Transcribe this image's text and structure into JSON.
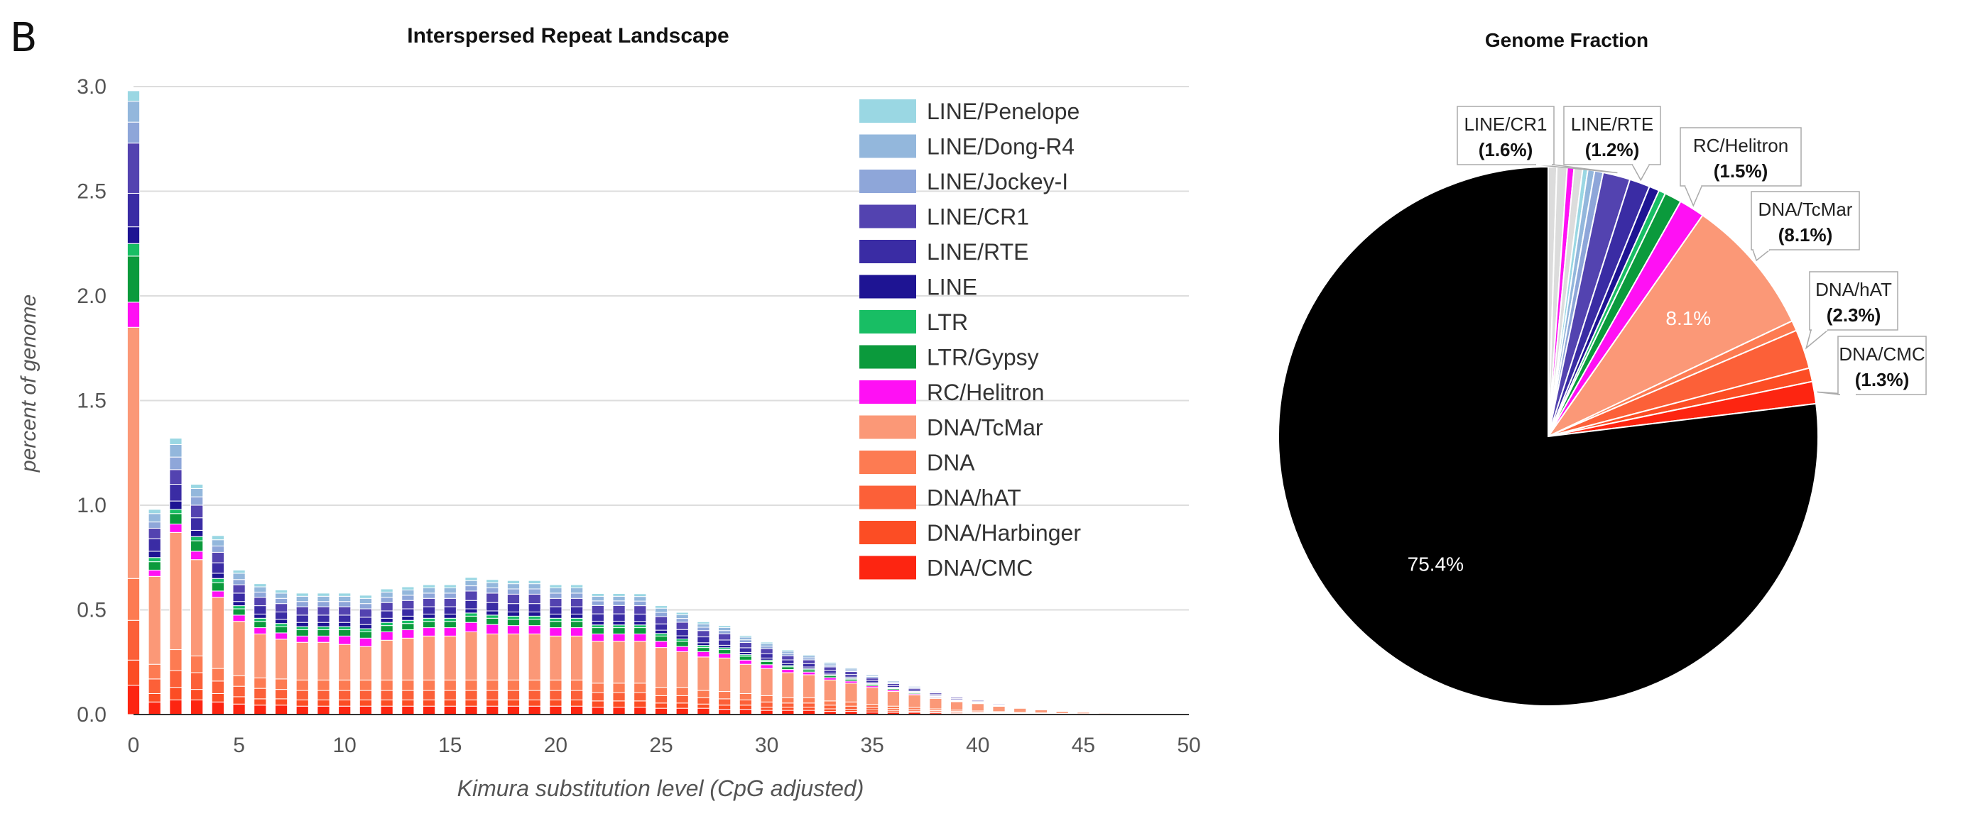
{
  "panel_label": "B",
  "colors": {
    "LINE/Penelope": "#9ad7e3",
    "LINE/Dong-R4": "#93b7dc",
    "LINE/Jockey-I": "#8ea6d9",
    "LINE/CR1": "#5343b0",
    "LINE/RTE": "#3a2ca4",
    "LINE": "#1e1493",
    "LTR": "#18be64",
    "LTR/Gypsy": "#0b9a3c",
    "RC/Helitron": "#ff10f4",
    "DNA/TcMar": "#fb9877",
    "DNA": "#fd7b52",
    "DNA/hAT": "#fc6038",
    "DNA/Harbinger": "#fc4d24",
    "DNA/CMC": "#fd2511",
    "Unmasked": "#000000",
    "Other": "#dcdcdc",
    "Grid": "#dddddd",
    "Axis text": "#555555"
  },
  "chart_data": [
    {
      "type": "bar",
      "stacked": true,
      "title": "Interspersed Repeat Landscape",
      "xlabel": "Kimura substitution level (CpG adjusted)",
      "ylabel": "percent of genome",
      "xlim": [
        0,
        50
      ],
      "ylim": [
        0,
        3.0
      ],
      "x_ticks": [
        "0",
        "5",
        "10",
        "15",
        "20",
        "25",
        "30",
        "35",
        "40",
        "45",
        "50"
      ],
      "y_ticks": [
        "3.0",
        "2.5",
        "2.0",
        "1.5",
        "1.0",
        "0.5",
        "0.0"
      ],
      "grid": true,
      "legend_position": "top-right",
      "categories": [
        0,
        1,
        2,
        3,
        4,
        5,
        6,
        7,
        8,
        9,
        10,
        11,
        12,
        13,
        14,
        15,
        16,
        17,
        18,
        19,
        20,
        21,
        22,
        23,
        24,
        25,
        26,
        27,
        28,
        29,
        30,
        31,
        32,
        33,
        34,
        35,
        36,
        37,
        38,
        39,
        40,
        41,
        42,
        43,
        44,
        45,
        46,
        47,
        48,
        49
      ],
      "series": [
        {
          "name": "DNA/CMC",
          "values": [
            0.14,
            0.06,
            0.07,
            0.07,
            0.06,
            0.05,
            0.045,
            0.045,
            0.04,
            0.04,
            0.04,
            0.04,
            0.04,
            0.04,
            0.04,
            0.04,
            0.04,
            0.04,
            0.04,
            0.04,
            0.04,
            0.04,
            0.035,
            0.035,
            0.035,
            0.03,
            0.03,
            0.03,
            0.025,
            0.025,
            0.02,
            0.02,
            0.02,
            0.015,
            0.015,
            0.012,
            0.01,
            0.01,
            0.008,
            0.006,
            0.005,
            0.004,
            0.003,
            0.002,
            0.002,
            0.001,
            0.001,
            0.0005,
            0.0005,
            0.0002
          ]
        },
        {
          "name": "DNA/Harbinger",
          "values": [
            0.12,
            0.04,
            0.06,
            0.05,
            0.04,
            0.035,
            0.03,
            0.03,
            0.03,
            0.03,
            0.03,
            0.03,
            0.03,
            0.03,
            0.03,
            0.03,
            0.03,
            0.03,
            0.03,
            0.03,
            0.03,
            0.03,
            0.03,
            0.03,
            0.03,
            0.025,
            0.025,
            0.02,
            0.02,
            0.02,
            0.015,
            0.015,
            0.015,
            0.012,
            0.01,
            0.01,
            0.008,
            0.006,
            0.005,
            0.004,
            0.003,
            0.003,
            0.002,
            0.002,
            0.001,
            0.001,
            0.0005,
            0.0005,
            0.0003,
            0.0002
          ]
        },
        {
          "name": "DNA/hAT",
          "values": [
            0.19,
            0.07,
            0.08,
            0.08,
            0.06,
            0.05,
            0.05,
            0.045,
            0.045,
            0.045,
            0.045,
            0.045,
            0.045,
            0.045,
            0.045,
            0.045,
            0.045,
            0.045,
            0.045,
            0.045,
            0.045,
            0.045,
            0.04,
            0.04,
            0.04,
            0.035,
            0.035,
            0.03,
            0.03,
            0.025,
            0.025,
            0.02,
            0.02,
            0.018,
            0.015,
            0.012,
            0.01,
            0.008,
            0.006,
            0.005,
            0.004,
            0.003,
            0.002,
            0.002,
            0.001,
            0.001,
            0.0005,
            0.0005,
            0.0003,
            0.0002
          ]
        },
        {
          "name": "DNA",
          "values": [
            0.2,
            0.07,
            0.1,
            0.08,
            0.06,
            0.05,
            0.05,
            0.05,
            0.05,
            0.05,
            0.05,
            0.05,
            0.05,
            0.05,
            0.05,
            0.05,
            0.05,
            0.05,
            0.05,
            0.05,
            0.05,
            0.05,
            0.045,
            0.045,
            0.045,
            0.04,
            0.04,
            0.035,
            0.035,
            0.03,
            0.03,
            0.025,
            0.025,
            0.02,
            0.02,
            0.015,
            0.012,
            0.01,
            0.008,
            0.006,
            0.005,
            0.004,
            0.003,
            0.002,
            0.001,
            0.001,
            0.0005,
            0.0005,
            0.0003,
            0.0002
          ]
        },
        {
          "name": "DNA/TcMar",
          "values": [
            1.2,
            0.42,
            0.56,
            0.46,
            0.34,
            0.26,
            0.21,
            0.19,
            0.18,
            0.18,
            0.17,
            0.16,
            0.19,
            0.2,
            0.21,
            0.21,
            0.23,
            0.22,
            0.22,
            0.22,
            0.21,
            0.21,
            0.2,
            0.2,
            0.2,
            0.19,
            0.17,
            0.16,
            0.16,
            0.14,
            0.13,
            0.12,
            0.11,
            0.1,
            0.09,
            0.08,
            0.07,
            0.06,
            0.05,
            0.04,
            0.035,
            0.025,
            0.02,
            0.015,
            0.01,
            0.008,
            0.005,
            0.003,
            0.002,
            0.001
          ]
        },
        {
          "name": "RC/Helitron",
          "values": [
            0.12,
            0.03,
            0.04,
            0.04,
            0.03,
            0.03,
            0.03,
            0.03,
            0.03,
            0.03,
            0.04,
            0.04,
            0.04,
            0.04,
            0.04,
            0.04,
            0.045,
            0.045,
            0.04,
            0.04,
            0.04,
            0.04,
            0.035,
            0.035,
            0.035,
            0.03,
            0.025,
            0.025,
            0.02,
            0.02,
            0.018,
            0.015,
            0.013,
            0.011,
            0.01,
            0.008,
            0.007,
            0.005,
            0.004,
            0.003,
            0.003,
            0.002,
            0.0015,
            0.001,
            0.0008,
            0.0005,
            0.0004,
            0.0003,
            0.0002,
            0.0001
          ]
        },
        {
          "name": "LTR/Gypsy",
          "values": [
            0.22,
            0.04,
            0.05,
            0.05,
            0.04,
            0.03,
            0.03,
            0.03,
            0.03,
            0.03,
            0.03,
            0.03,
            0.03,
            0.03,
            0.03,
            0.03,
            0.03,
            0.03,
            0.03,
            0.03,
            0.03,
            0.03,
            0.03,
            0.03,
            0.03,
            0.025,
            0.025,
            0.02,
            0.02,
            0.018,
            0.015,
            0.013,
            0.011,
            0.01,
            0.009,
            0.007,
            0.006,
            0.005,
            0.004,
            0.003,
            0.002,
            0.002,
            0.0015,
            0.001,
            0.0008,
            0.0005,
            0.0004,
            0.0003,
            0.0002,
            0.0001
          ]
        },
        {
          "name": "LTR",
          "values": [
            0.06,
            0.02,
            0.02,
            0.02,
            0.02,
            0.015,
            0.015,
            0.015,
            0.015,
            0.015,
            0.015,
            0.015,
            0.015,
            0.015,
            0.015,
            0.015,
            0.015,
            0.015,
            0.015,
            0.015,
            0.015,
            0.015,
            0.013,
            0.013,
            0.013,
            0.012,
            0.011,
            0.01,
            0.009,
            0.008,
            0.007,
            0.006,
            0.005,
            0.0045,
            0.004,
            0.0035,
            0.003,
            0.0025,
            0.002,
            0.0015,
            0.001,
            0.001,
            0.0008,
            0.0005,
            0.0004,
            0.0003,
            0.0002,
            0.0001,
            0.0001,
            0.0001
          ]
        },
        {
          "name": "LINE",
          "values": [
            0.08,
            0.03,
            0.04,
            0.03,
            0.025,
            0.02,
            0.02,
            0.02,
            0.02,
            0.02,
            0.02,
            0.02,
            0.02,
            0.02,
            0.02,
            0.02,
            0.02,
            0.02,
            0.02,
            0.02,
            0.02,
            0.02,
            0.018,
            0.018,
            0.017,
            0.016,
            0.015,
            0.013,
            0.012,
            0.011,
            0.01,
            0.009,
            0.008,
            0.007,
            0.006,
            0.005,
            0.004,
            0.0035,
            0.003,
            0.0025,
            0.002,
            0.0015,
            0.001,
            0.0008,
            0.0005,
            0.0004,
            0.0003,
            0.0002,
            0.0001,
            0.0001
          ]
        },
        {
          "name": "LINE/RTE",
          "values": [
            0.16,
            0.06,
            0.08,
            0.06,
            0.05,
            0.04,
            0.04,
            0.035,
            0.035,
            0.035,
            0.035,
            0.035,
            0.035,
            0.035,
            0.035,
            0.035,
            0.04,
            0.04,
            0.04,
            0.04,
            0.035,
            0.035,
            0.035,
            0.035,
            0.035,
            0.03,
            0.03,
            0.028,
            0.025,
            0.022,
            0.02,
            0.018,
            0.016,
            0.014,
            0.012,
            0.01,
            0.008,
            0.007,
            0.006,
            0.005,
            0.004,
            0.003,
            0.002,
            0.0015,
            0.001,
            0.0008,
            0.0005,
            0.0004,
            0.0002,
            0.0001
          ]
        },
        {
          "name": "LINE/CR1",
          "values": [
            0.24,
            0.05,
            0.07,
            0.06,
            0.05,
            0.04,
            0.04,
            0.04,
            0.04,
            0.04,
            0.04,
            0.04,
            0.04,
            0.04,
            0.04,
            0.04,
            0.045,
            0.045,
            0.045,
            0.045,
            0.04,
            0.04,
            0.04,
            0.04,
            0.04,
            0.035,
            0.035,
            0.03,
            0.03,
            0.025,
            0.025,
            0.02,
            0.018,
            0.016,
            0.014,
            0.012,
            0.01,
            0.008,
            0.007,
            0.006,
            0.005,
            0.004,
            0.003,
            0.002,
            0.0015,
            0.001,
            0.0008,
            0.0005,
            0.0003,
            0.0002
          ]
        },
        {
          "name": "LINE/Jockey-I",
          "values": [
            0.1,
            0.03,
            0.06,
            0.04,
            0.03,
            0.025,
            0.025,
            0.025,
            0.025,
            0.025,
            0.025,
            0.025,
            0.025,
            0.025,
            0.025,
            0.025,
            0.025,
            0.025,
            0.025,
            0.025,
            0.025,
            0.025,
            0.022,
            0.022,
            0.022,
            0.02,
            0.018,
            0.016,
            0.015,
            0.013,
            0.012,
            0.011,
            0.01,
            0.009,
            0.008,
            0.007,
            0.006,
            0.005,
            0.004,
            0.003,
            0.0025,
            0.002,
            0.0015,
            0.001,
            0.0008,
            0.0005,
            0.0004,
            0.0003,
            0.0002,
            0.0001
          ]
        },
        {
          "name": "LINE/Dong-R4",
          "values": [
            0.1,
            0.04,
            0.06,
            0.04,
            0.03,
            0.03,
            0.025,
            0.025,
            0.025,
            0.025,
            0.025,
            0.025,
            0.025,
            0.025,
            0.025,
            0.025,
            0.025,
            0.025,
            0.025,
            0.025,
            0.025,
            0.025,
            0.022,
            0.022,
            0.022,
            0.02,
            0.018,
            0.016,
            0.015,
            0.013,
            0.012,
            0.011,
            0.01,
            0.009,
            0.008,
            0.007,
            0.006,
            0.005,
            0.004,
            0.003,
            0.0025,
            0.002,
            0.0015,
            0.001,
            0.0008,
            0.0005,
            0.0004,
            0.0003,
            0.0002,
            0.0001
          ]
        },
        {
          "name": "LINE/Penelope",
          "values": [
            0.05,
            0.02,
            0.03,
            0.02,
            0.02,
            0.015,
            0.015,
            0.015,
            0.015,
            0.015,
            0.015,
            0.015,
            0.015,
            0.015,
            0.015,
            0.015,
            0.015,
            0.015,
            0.015,
            0.015,
            0.015,
            0.015,
            0.013,
            0.013,
            0.013,
            0.012,
            0.011,
            0.01,
            0.009,
            0.008,
            0.007,
            0.006,
            0.005,
            0.0045,
            0.004,
            0.0035,
            0.003,
            0.0025,
            0.002,
            0.0015,
            0.001,
            0.001,
            0.0008,
            0.0005,
            0.0004,
            0.0003,
            0.0002,
            0.0001,
            0.0001,
            0.0001
          ]
        }
      ],
      "legend": [
        "LINE/Penelope",
        "LINE/Dong-R4",
        "LINE/Jockey-I",
        "LINE/CR1",
        "LINE/RTE",
        "LINE",
        "LTR",
        "LTR/Gypsy",
        "RC/Helitron",
        "DNA/TcMar",
        "DNA",
        "DNA/hAT",
        "DNA/Harbinger",
        "DNA/CMC"
      ]
    },
    {
      "type": "pie",
      "title": "Genome Fraction",
      "start_angle_deg": 0,
      "slices": [
        {
          "name": "Other",
          "value": 0.5
        },
        {
          "name": "Other",
          "value": 0.6
        },
        {
          "name": "RC/Helitron",
          "value": 0.4
        },
        {
          "name": "Other",
          "value": 0.5
        },
        {
          "name": "LINE/Penelope",
          "value": 0.3
        },
        {
          "name": "LINE/Dong-R4",
          "value": 0.4
        },
        {
          "name": "LINE/Jockey-I",
          "value": 0.5
        },
        {
          "name": "LINE/CR1",
          "value": 1.6
        },
        {
          "name": "LINE/RTE",
          "value": 1.2
        },
        {
          "name": "LINE",
          "value": 0.6
        },
        {
          "name": "LTR",
          "value": 0.4
        },
        {
          "name": "LTR/Gypsy",
          "value": 1.0
        },
        {
          "name": "RC/Helitron",
          "value": 1.5
        },
        {
          "name": "DNA/TcMar",
          "value": 8.1
        },
        {
          "name": "DNA",
          "value": 0.6
        },
        {
          "name": "DNA/hAT",
          "value": 2.3
        },
        {
          "name": "DNA/Harbinger",
          "value": 0.8
        },
        {
          "name": "DNA/CMC",
          "value": 1.3
        },
        {
          "name": "Unmasked",
          "value": 75.4
        }
      ],
      "inner_labels": [
        {
          "text": "8.1%",
          "slice": "DNA/TcMar"
        },
        {
          "text": "75.4%",
          "slice": "Unmasked"
        }
      ],
      "callouts": [
        {
          "name": "LINE/CR1",
          "pct": "(1.6%)"
        },
        {
          "name": "LINE/RTE",
          "pct": "(1.2%)"
        },
        {
          "name": "RC/Helitron",
          "pct": "(1.5%)"
        },
        {
          "name": "DNA/TcMar",
          "pct": "(8.1%)"
        },
        {
          "name": "DNA/hAT",
          "pct": "(2.3%)"
        },
        {
          "name": "DNA/CMC",
          "pct": "(1.3%)"
        }
      ]
    }
  ]
}
